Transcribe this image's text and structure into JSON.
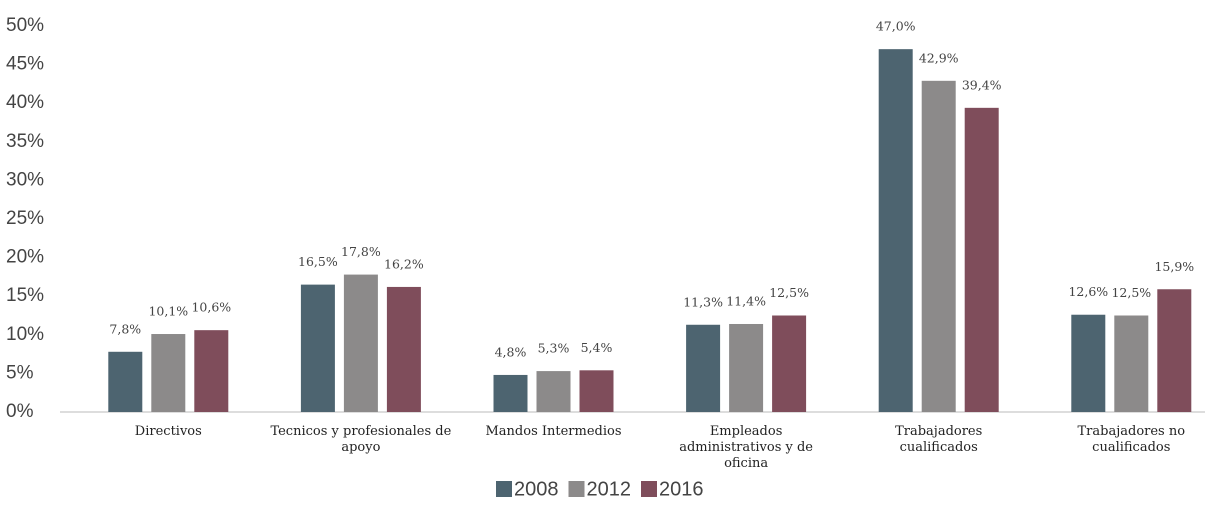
{
  "chart_data": {
    "type": "bar",
    "categories": [
      "Directivos",
      "Tecnicos y profesionales de apoyo",
      "Mandos Intermedios",
      "Empleados administrativos y de oficina",
      "Trabajadores cualificados",
      "Trabajadores no cualificados"
    ],
    "series": [
      {
        "name": "2008",
        "color": "#4d6470",
        "values": [
          7.8,
          16.5,
          4.8,
          11.3,
          47.0,
          12.6
        ],
        "value_labels": [
          "7,8%",
          "16,5%",
          "4,8%",
          "11,3%",
          "47,0%",
          "12,6%"
        ]
      },
      {
        "name": "2012",
        "color": "#8c8a8a",
        "values": [
          10.1,
          17.8,
          5.3,
          11.4,
          42.9,
          12.5
        ],
        "value_labels": [
          "10,1%",
          "17,8%",
          "5,3%",
          "11,4%",
          "42,9%",
          "12,5%"
        ]
      },
      {
        "name": "2016",
        "color": "#7f4d5b",
        "values": [
          10.6,
          16.2,
          5.4,
          12.5,
          39.4,
          15.9
        ],
        "value_labels": [
          "10,6%",
          "16,2%",
          "5,4%",
          "12,5%",
          "39,4%",
          "15,9%"
        ]
      }
    ],
    "ylim": [
      0,
      50
    ],
    "yticks": [
      {
        "value": 0,
        "label": "0%"
      },
      {
        "value": 5,
        "label": "5%"
      },
      {
        "value": 10,
        "label": "10%"
      },
      {
        "value": 15,
        "label": "15%"
      },
      {
        "value": 20,
        "label": "20%"
      },
      {
        "value": 25,
        "label": "25%"
      },
      {
        "value": 30,
        "label": "30%"
      },
      {
        "value": 35,
        "label": "35%"
      },
      {
        "value": 40,
        "label": "40%"
      },
      {
        "value": 45,
        "label": "45%"
      },
      {
        "value": 50,
        "label": "50%"
      }
    ],
    "grid": false,
    "legend": "bottom"
  }
}
